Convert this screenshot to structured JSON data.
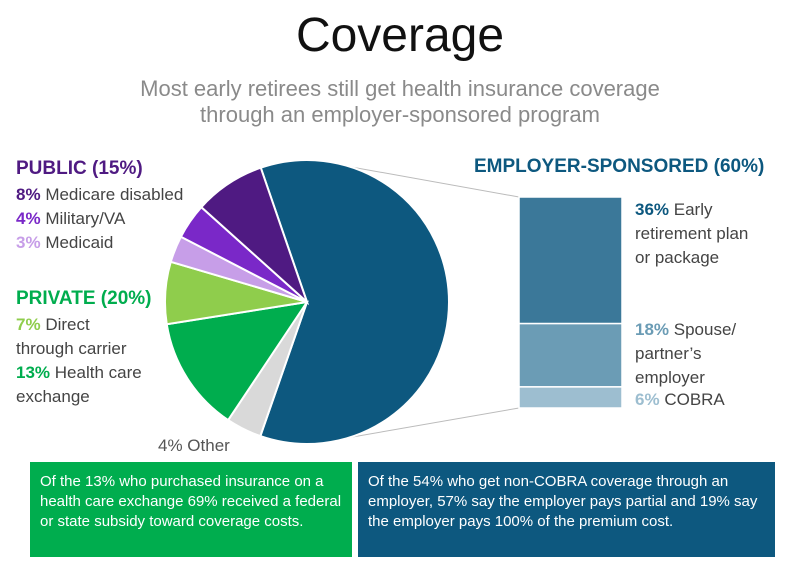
{
  "title": "Coverage",
  "subtitle": [
    "Most early retirees still get health insurance coverage",
    "through an employer-sponsored program"
  ],
  "public": {
    "header": "PUBLIC (15%)",
    "color": "#4f1a82",
    "items": [
      {
        "pct": "8%",
        "label": "Medicare disabled",
        "color": "#4f1a82"
      },
      {
        "pct": "4%",
        "label": "Military/VA",
        "color": "#7a28c8"
      },
      {
        "pct": "3%",
        "label": "Medicaid",
        "color": "#c79ee8"
      }
    ]
  },
  "private": {
    "header": "PRIVATE (20%)",
    "color": "#00ad4e",
    "items": [
      {
        "pct": "7%",
        "label_lines": [
          "Direct",
          "through carrier"
        ],
        "color": "#8fcd4c"
      },
      {
        "pct": "13%",
        "label_lines": [
          "Health care",
          "exchange"
        ],
        "color": "#00ad4e"
      }
    ]
  },
  "other": {
    "label": "4% Other",
    "color": "#d9d9d9"
  },
  "employer": {
    "header": "EMPLOYER-SPONSORED (60%)",
    "color": "#0d587f",
    "items": [
      {
        "pct": "36%",
        "label_lines": [
          "Early",
          "retirement plan",
          "or package"
        ],
        "color": "#3b7899"
      },
      {
        "pct": "18%",
        "label_lines": [
          "Spouse/",
          "partner’s",
          "employer"
        ],
        "color": "#6b9cb5"
      },
      {
        "pct": "6%",
        "label_lines": [
          "COBRA"
        ],
        "color": "#9dbed0"
      }
    ]
  },
  "notes": {
    "private_note": "Of the 13% who purchased insurance on a health care exchange 69% received a federal or state subsidy toward coverage costs.",
    "employer_note": "Of the 54% who get non-COBRA coverage through an employer, 57% say the employer pays partial and 19% say the employer pays 100% of the premium cost."
  },
  "chart_data": [
    {
      "type": "pie",
      "title": "Coverage",
      "slices": [
        {
          "name": "Employer-sponsored",
          "value": 60,
          "color": "#0d587f"
        },
        {
          "name": "Other",
          "value": 4,
          "color": "#d9d9d9"
        },
        {
          "name": "Health care exchange",
          "value": 13,
          "color": "#00ad4e"
        },
        {
          "name": "Direct through carrier",
          "value": 7,
          "color": "#8fcd4c"
        },
        {
          "name": "Medicaid",
          "value": 3,
          "color": "#c79ee8"
        },
        {
          "name": "Military/VA",
          "value": 4,
          "color": "#7a28c8"
        },
        {
          "name": "Medicare disabled",
          "value": 8,
          "color": "#4f1a82"
        }
      ]
    },
    {
      "type": "bar",
      "title": "Employer-sponsored (60%)",
      "stacked": true,
      "categories": [
        "Early retirement plan or package",
        "Spouse/partner’s employer",
        "COBRA"
      ],
      "values": [
        36,
        18,
        6
      ]
    }
  ]
}
